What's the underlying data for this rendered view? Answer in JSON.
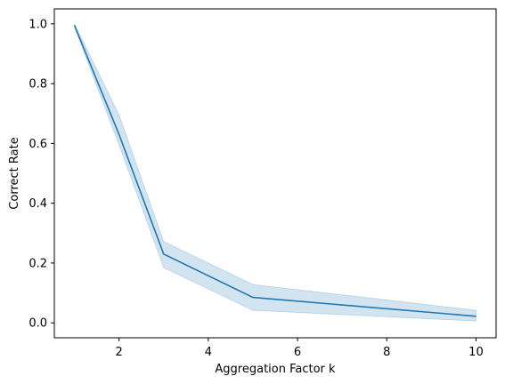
{
  "chart_data": {
    "type": "line",
    "title": "",
    "xlabel": "Aggregation Factor k",
    "ylabel": "Correct Rate",
    "xlim": [
      0.55,
      10.45
    ],
    "ylim": [
      -0.05,
      1.05
    ],
    "xticks": [
      2,
      4,
      6,
      8,
      10
    ],
    "xtick_labels": [
      "2",
      "4",
      "6",
      "8",
      "10"
    ],
    "yticks": [
      0.0,
      0.2,
      0.4,
      0.6,
      0.8,
      1.0
    ],
    "ytick_labels": [
      "0.0",
      "0.2",
      "0.4",
      "0.6",
      "0.8",
      "1.0"
    ],
    "grid": false,
    "series": [
      {
        "x": [
          1,
          2,
          3,
          5,
          10
        ],
        "values": [
          0.995,
          0.63,
          0.23,
          0.085,
          0.022
        ],
        "ci_lower": [
          0.99,
          0.595,
          0.185,
          0.042,
          0.006
        ],
        "ci_upper": [
          1.0,
          0.695,
          0.272,
          0.128,
          0.042
        ],
        "color": "#1f77b4",
        "band_color": "#1f77b4"
      }
    ]
  }
}
